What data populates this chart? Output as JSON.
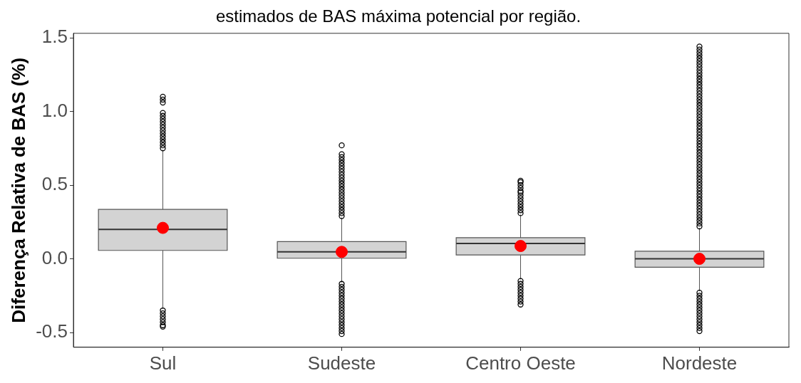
{
  "chart_data": {
    "type": "box",
    "title": "estimados de BAS máxima potencial por região.",
    "ylabel": "Diferença Relativa de BAS (%)",
    "categories": [
      "Sul",
      "Sudeste",
      "Centro Oeste",
      "Nordeste"
    ],
    "ylim": [
      -0.6,
      1.53
    ],
    "yticks": [
      {
        "value": -0.5,
        "label": "-0.5"
      },
      {
        "value": 0,
        "label": "0.0"
      },
      {
        "value": 0.5,
        "label": "0.5"
      },
      {
        "value": 1,
        "label": "1.0"
      },
      {
        "value": 1.5,
        "label": "1.5"
      }
    ],
    "grid": false,
    "legend": false,
    "series": [
      {
        "type": "box",
        "color": "#d3d3d3",
        "boxes": [
          {
            "low": -0.34,
            "q1": 0.057,
            "median": 0.2,
            "q3": 0.335,
            "high": 0.74,
            "outliers": [
              0.75,
              0.77,
              0.79,
              0.81,
              0.83,
              0.85,
              0.87,
              0.89,
              0.91,
              0.93,
              0.95,
              0.97,
              0.99,
              1.06,
              1.08,
              1.1,
              -0.35,
              -0.37,
              -0.39,
              -0.41,
              -0.43,
              -0.45,
              -0.46
            ]
          },
          {
            "low": -0.16,
            "q1": 0.004,
            "median": 0.048,
            "q3": 0.117,
            "high": 0.28,
            "outliers": [
              0.29,
              0.31,
              0.33,
              0.35,
              0.37,
              0.39,
              0.41,
              0.43,
              0.45,
              0.47,
              0.49,
              0.51,
              0.53,
              0.55,
              0.57,
              0.59,
              0.61,
              0.63,
              0.65,
              0.67,
              0.69,
              0.71,
              0.77,
              -0.17,
              -0.19,
              -0.21,
              -0.23,
              -0.25,
              -0.27,
              -0.29,
              -0.31,
              -0.33,
              -0.35,
              -0.37,
              -0.39,
              -0.41,
              -0.43,
              -0.45,
              -0.47,
              -0.49,
              -0.51
            ]
          },
          {
            "low": -0.14,
            "q1": 0.026,
            "median": 0.104,
            "q3": 0.143,
            "high": 0.3,
            "outliers": [
              0.31,
              0.33,
              0.35,
              0.37,
              0.39,
              0.41,
              0.43,
              0.45,
              0.46,
              0.48,
              0.5,
              0.52,
              0.53,
              -0.15,
              -0.17,
              -0.19,
              -0.21,
              -0.23,
              -0.25,
              -0.27,
              -0.29,
              -0.31
            ]
          },
          {
            "low": -0.22,
            "q1": -0.057,
            "median": 0.0,
            "q3": 0.052,
            "high": 0.21,
            "outliers": [
              0.22,
              0.24,
              0.26,
              0.28,
              0.3,
              0.32,
              0.34,
              0.36,
              0.38,
              0.4,
              0.42,
              0.44,
              0.46,
              0.48,
              0.5,
              0.52,
              0.54,
              0.56,
              0.58,
              0.6,
              0.62,
              0.64,
              0.66,
              0.68,
              0.7,
              0.72,
              0.74,
              0.76,
              0.78,
              0.8,
              0.82,
              0.84,
              0.86,
              0.88,
              0.9,
              0.92,
              0.94,
              0.96,
              0.98,
              1.0,
              1.02,
              1.04,
              1.06,
              1.08,
              1.1,
              1.12,
              1.14,
              1.16,
              1.18,
              1.2,
              1.22,
              1.24,
              1.26,
              1.28,
              1.3,
              1.32,
              1.34,
              1.36,
              1.38,
              1.4,
              1.42,
              1.44,
              -0.23,
              -0.25,
              -0.27,
              -0.29,
              -0.31,
              -0.33,
              -0.35,
              -0.37,
              -0.39,
              -0.41,
              -0.43,
              -0.45,
              -0.47,
              -0.49
            ]
          }
        ]
      },
      {
        "type": "scatter",
        "color": "#ff0000",
        "marker": "circle",
        "x": [
          "Sul",
          "Sudeste",
          "Centro Oeste",
          "Nordeste"
        ],
        "values": [
          0.21,
          0.047,
          0.087,
          0.0
        ]
      }
    ]
  }
}
